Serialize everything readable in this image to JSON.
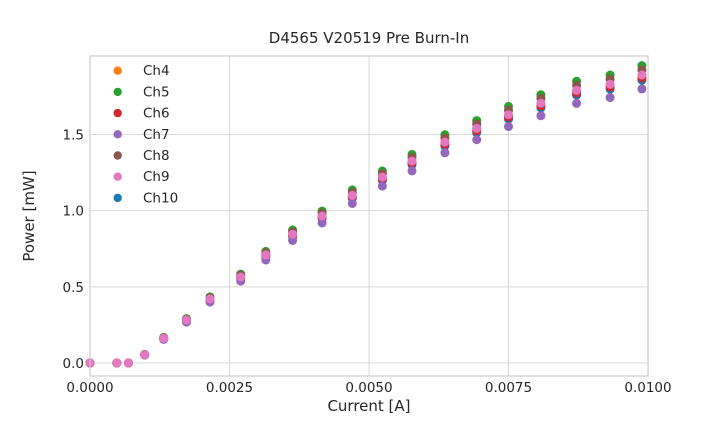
{
  "title": "D4565 V20519 Pre Burn-In",
  "axes": {
    "xlabel": "Current [A]",
    "ylabel": "Power [mW]",
    "x_tick_labels": [
      "0.0000",
      "0.0025",
      "0.0050",
      "0.0075",
      "0.0100"
    ],
    "y_tick_labels": [
      "0.0",
      "0.5",
      "1.0",
      "1.5"
    ]
  },
  "colors": {
    "background": "#ffffff",
    "grid": "#d9d9d9",
    "spine": "#cccccc",
    "text": "#262626"
  },
  "chart_data": {
    "type": "scatter",
    "title": "D4565 V20519 Pre Burn-In",
    "xlabel": "Current [A]",
    "ylabel": "Power [mW]",
    "xlim": [
      0,
      0.01
    ],
    "ylim": [
      -0.085,
      2.015
    ],
    "x_tick_values": [
      0,
      0.0025,
      0.005,
      0.0075,
      0.01
    ],
    "y_tick_values": [
      0,
      0.5,
      1.0,
      1.5
    ],
    "grid": true,
    "legend_position": "upper left",
    "marker": "circle",
    "marker_size_px": 9,
    "x": [
      0.0,
      0.00048,
      0.00069,
      0.00098,
      0.00132,
      0.00173,
      0.00215,
      0.0027,
      0.00315,
      0.00363,
      0.00416,
      0.0047,
      0.00524,
      0.00577,
      0.00636,
      0.00693,
      0.0075,
      0.00808,
      0.00872,
      0.00932,
      0.00989
    ],
    "series": [
      {
        "name": "Ch4",
        "color": "#ff7f0e",
        "values": [
          0,
          0,
          0,
          0.055,
          0.163,
          0.282,
          0.419,
          0.563,
          0.708,
          0.842,
          0.962,
          1.097,
          1.216,
          1.321,
          1.446,
          1.535,
          1.625,
          1.7,
          1.785,
          1.825,
          1.884
        ]
      },
      {
        "name": "Ch5",
        "color": "#2ca02c",
        "values": [
          0,
          0,
          0,
          0.057,
          0.168,
          0.292,
          0.434,
          0.584,
          0.733,
          0.873,
          0.997,
          1.136,
          1.26,
          1.369,
          1.498,
          1.591,
          1.684,
          1.761,
          1.849,
          1.89,
          1.952
        ]
      },
      {
        "name": "Ch6",
        "color": "#d62728",
        "values": [
          0,
          0,
          0,
          0.054,
          0.161,
          0.28,
          0.416,
          0.559,
          0.703,
          0.837,
          0.955,
          1.089,
          1.208,
          1.312,
          1.436,
          1.525,
          1.614,
          1.688,
          1.772,
          1.812,
          1.871
        ]
      },
      {
        "name": "Ch7",
        "color": "#9467bd",
        "values": [
          0,
          0,
          0,
          0.052,
          0.155,
          0.269,
          0.4,
          0.538,
          0.676,
          0.804,
          0.919,
          1.047,
          1.161,
          1.261,
          1.38,
          1.466,
          1.552,
          1.623,
          1.704,
          1.742,
          1.799
        ]
      },
      {
        "name": "Ch8",
        "color": "#8c564b",
        "values": [
          0,
          0,
          0,
          0.056,
          0.166,
          0.288,
          0.428,
          0.575,
          0.723,
          0.86,
          0.982,
          1.12,
          1.242,
          1.349,
          1.476,
          1.568,
          1.659,
          1.736,
          1.822,
          1.863,
          1.924
        ]
      },
      {
        "name": "Ch9",
        "color": "#e377c2",
        "values": [
          0,
          0,
          0,
          0.055,
          0.163,
          0.283,
          0.42,
          0.565,
          0.71,
          0.845,
          0.965,
          1.1,
          1.22,
          1.325,
          1.45,
          1.54,
          1.63,
          1.705,
          1.79,
          1.83,
          1.89
        ]
      },
      {
        "name": "Ch10",
        "color": "#1f77b4",
        "values": [
          0,
          0,
          0,
          0.054,
          0.16,
          0.278,
          0.412,
          0.555,
          0.697,
          0.83,
          0.948,
          1.08,
          1.198,
          1.301,
          1.424,
          1.512,
          1.601,
          1.674,
          1.758,
          1.797,
          1.856
        ]
      }
    ],
    "draw_order": [
      "Ch10",
      "Ch4",
      "Ch5",
      "Ch6",
      "Ch7",
      "Ch8",
      "Ch9"
    ]
  }
}
